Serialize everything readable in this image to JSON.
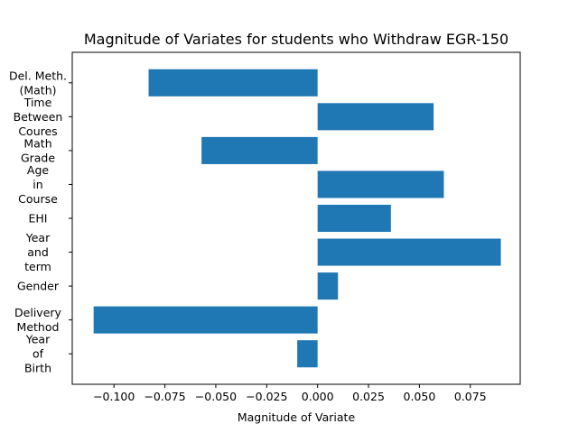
{
  "chart_data": {
    "type": "bar",
    "orientation": "horizontal",
    "title": "Magnitude of Variates for students who Withdraw EGR-150",
    "xlabel": "Magnitude of Variate",
    "ylabel": "",
    "xlim": [
      -0.1205,
      0.0995
    ],
    "xticks": [
      "−0.100",
      "−0.075",
      "−0.050",
      "−0.025",
      "0.000",
      "0.025",
      "0.050",
      "0.075"
    ],
    "xtick_values": [
      -0.1,
      -0.075,
      -0.05,
      -0.025,
      0.0,
      0.025,
      0.05,
      0.075
    ],
    "grid": false,
    "bar_color": "#1f77b4",
    "categories": [
      [
        "Year",
        "of",
        "Birth"
      ],
      [
        "Delivery",
        "Method"
      ],
      [
        "Gender"
      ],
      [
        "Year",
        "and",
        "term"
      ],
      [
        "EHI"
      ],
      [
        "Age",
        "in",
        "Course"
      ],
      [
        "Math",
        "Grade"
      ],
      [
        "Time",
        "Between",
        "Coures"
      ],
      [
        "Del. Meth.",
        "(Math)"
      ]
    ],
    "values": [
      -0.01,
      -0.11,
      0.01,
      0.09,
      0.036,
      0.062,
      -0.057,
      0.057,
      -0.083
    ]
  }
}
